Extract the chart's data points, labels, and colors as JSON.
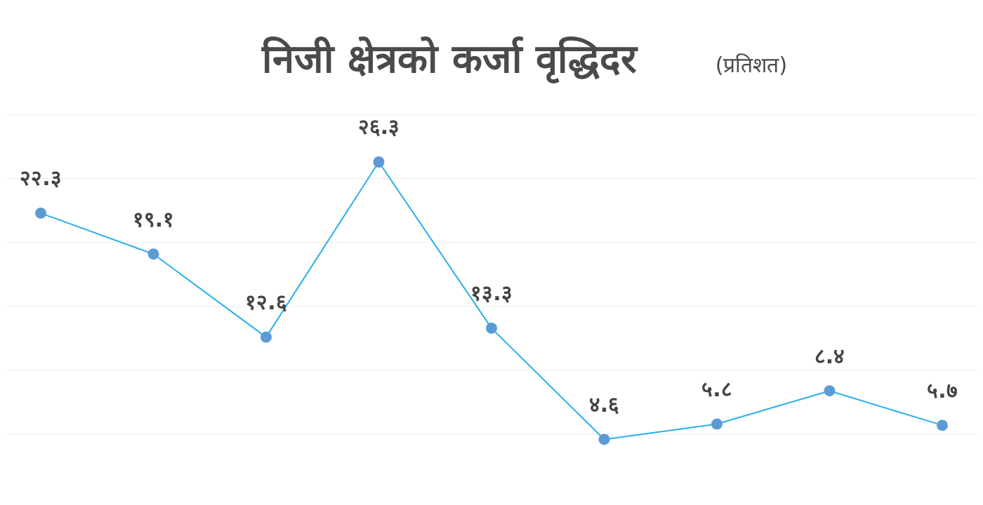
{
  "chart_data": {
    "type": "line",
    "title": "निजी क्षेत्रको कर्जा वृद्धिदर",
    "subtitle": "(प्रतिशत)",
    "categories": [
      null,
      null,
      null,
      null,
      null,
      null,
      null,
      null,
      null
    ],
    "series": [
      {
        "color": "#29b0ea",
        "values": [
          22.3,
          19.1,
          12.6,
          26.3,
          13.3,
          4.6,
          5.8,
          8.4,
          5.7
        ],
        "value_labels": [
          "२२.३",
          "१९.१",
          "१२.६",
          "२६.३",
          "१३.३",
          "४.६",
          "५.८",
          "८.४",
          "५.७"
        ]
      }
    ],
    "yticks": [
      {
        "value": 5,
        "label": null
      },
      {
        "value": 10,
        "label": null
      },
      {
        "value": 15,
        "label": null
      },
      {
        "value": 20,
        "label": null
      },
      {
        "value": 25,
        "label": null
      },
      {
        "value": 30,
        "label": null
      }
    ],
    "grid": "y",
    "marker": "circle",
    "line_style": "solid"
  }
}
